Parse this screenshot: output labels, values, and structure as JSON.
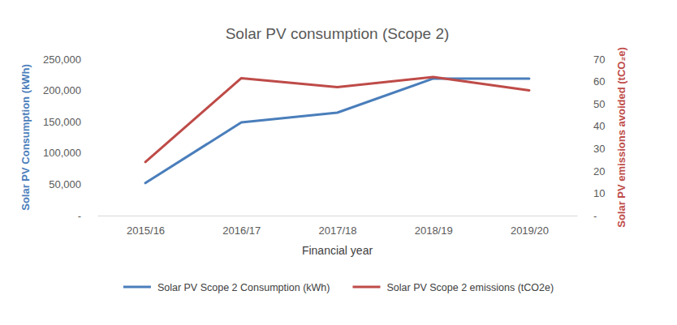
{
  "chart_data": {
    "type": "line",
    "title": "Solar PV consumption (Scope 2)",
    "x_label": "Financial year",
    "y_label": "Solar PV Consumption (kWh)",
    "y2_label": "Solar PV emissions avoided (tCO₂e)",
    "categories": [
      "2015/16",
      "2016/17",
      "2017/18",
      "2018/19",
      "2019/20"
    ],
    "series": [
      {
        "name": "Solar PV Scope 2 Consumption (kWh)",
        "color": "#4a7ebb",
        "axis": "y",
        "values": [
          52000,
          149000,
          164500,
          219000,
          219000
        ]
      },
      {
        "name": "Solar PV Scope 2 emissions (tCO2e)",
        "color": "#be4b48",
        "axis": "y2",
        "values": [
          24,
          61.5,
          57.5,
          62,
          56
        ]
      }
    ],
    "ylim": [
      0,
      250000
    ],
    "yticks": [
      {
        "value": 0,
        "label": "-"
      },
      {
        "value": 50000,
        "label": "50,000"
      },
      {
        "value": 100000,
        "label": "100,000"
      },
      {
        "value": 150000,
        "label": "150,000"
      },
      {
        "value": 200000,
        "label": "200,000"
      },
      {
        "value": 250000,
        "label": "250,000"
      }
    ],
    "y2lim": [
      0,
      70
    ],
    "y2ticks": [
      {
        "value": 0,
        "label": "-"
      },
      10,
      20,
      30,
      40,
      50,
      60,
      70
    ],
    "grid": false,
    "legend": "bottom"
  }
}
